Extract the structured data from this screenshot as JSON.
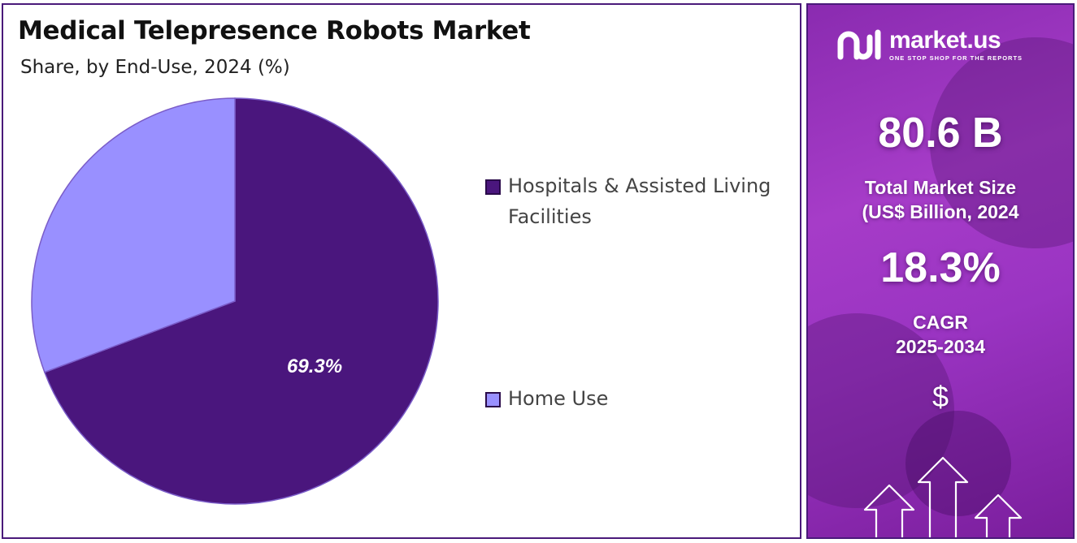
{
  "title": "Medical Telepresence Robots Market",
  "subtitle": "Share, by End-Use, 2024 (%)",
  "chart_data": {
    "type": "pie",
    "title": "Medical Telepresence Robots Market",
    "subtitle": "Share, by End-Use, 2024 (%)",
    "categories": [
      "Hospitals & Assisted Living Facilities",
      "Home Use"
    ],
    "values": [
      69.3,
      30.7
    ],
    "colors": [
      "#4a167d",
      "#9990ff"
    ],
    "data_labels": [
      "69.3%",
      ""
    ],
    "legend_placement": "right"
  },
  "legend": [
    {
      "label": "Hospitals & Assisted Living Facilities",
      "color": "#4a167d"
    },
    {
      "label": "Home Use",
      "color": "#9990ff"
    }
  ],
  "side_panel": {
    "brand": "market.us",
    "tagline": "ONE STOP SHOP FOR THE REPORTS",
    "market_size": "80.6 B",
    "market_size_label_1": "Total Market Size",
    "market_size_label_2": "(US$ Billion, 2024",
    "cagr": "18.3%",
    "cagr_label_1": "CAGR",
    "cagr_label_2": "2025-2034",
    "currency_symbol": "$",
    "accent_color": "#9b35c4"
  }
}
